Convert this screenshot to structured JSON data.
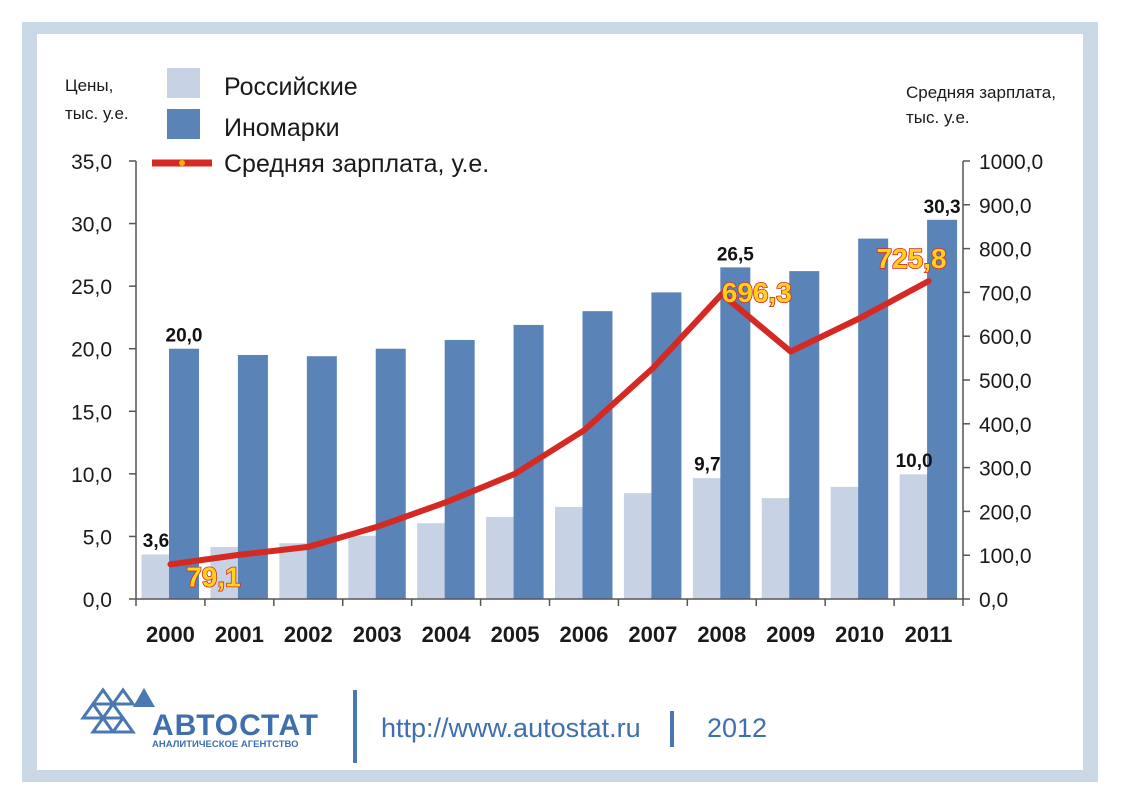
{
  "chart_data": {
    "type": "bar",
    "categories": [
      "2000",
      "2001",
      "2002",
      "2003",
      "2004",
      "2005",
      "2006",
      "2007",
      "2008",
      "2009",
      "2010",
      "2011"
    ],
    "series": [
      {
        "name": "Российские",
        "kind": "bar",
        "color": "#c7d3e5",
        "axis": "left",
        "values": [
          3.6,
          4.2,
          4.5,
          5.1,
          6.1,
          6.6,
          7.4,
          8.5,
          9.7,
          8.1,
          9.0,
          10.0
        ]
      },
      {
        "name": "Иномарки",
        "kind": "bar",
        "color": "#5a83b8",
        "axis": "left",
        "values": [
          20.0,
          19.5,
          19.4,
          20.0,
          20.7,
          21.9,
          23.0,
          24.5,
          26.5,
          26.2,
          28.8,
          30.3
        ]
      },
      {
        "name": "Средняя зарплата, у.е.",
        "kind": "line",
        "color": "#d42a23",
        "axis": "right",
        "values": [
          79.1,
          101,
          119,
          165,
          221,
          286,
          385,
          527,
          696.3,
          565,
          641,
          725.8
        ]
      }
    ],
    "left_axis": {
      "label_line1": "Цены,",
      "label_line2": "тыс. у.е.",
      "min": 0,
      "max": 35,
      "step": 5,
      "ticks": [
        "0,0",
        "5,0",
        "10,0",
        "15,0",
        "20,0",
        "25,0",
        "30,0",
        "35,0"
      ]
    },
    "right_axis": {
      "label_line1": "Средняя зарплата,",
      "label_line2": "тыс. у.е.",
      "min": 0,
      "max": 1000,
      "step": 100,
      "ticks": [
        "0,0",
        "100,0",
        "200,0",
        "300,0",
        "400,0",
        "500,0",
        "600,0",
        "700,0",
        "800,0",
        "900,0",
        "1000,0"
      ]
    },
    "annotations": {
      "bars": [
        {
          "series": 0,
          "index": 0,
          "text": "3,6"
        },
        {
          "series": 1,
          "index": 0,
          "text": "20,0"
        },
        {
          "series": 0,
          "index": 8,
          "text": "9,7"
        },
        {
          "series": 1,
          "index": 8,
          "text": "26,5"
        },
        {
          "series": 0,
          "index": 11,
          "text": "10,0"
        },
        {
          "series": 1,
          "index": 11,
          "text": "30,3"
        }
      ],
      "line": [
        {
          "index": 0,
          "text": "79,1"
        },
        {
          "index": 8,
          "text": "696,3"
        },
        {
          "index": 11,
          "text": "725,8"
        }
      ]
    },
    "grid": false,
    "legend_position": "top-left"
  },
  "footer": {
    "logo_name": "АВТОСТАТ",
    "logo_subtitle": "АНАЛИТИЧЕСКОЕ АГЕНТСТВО",
    "url": "http://www.autostat.ru",
    "year": "2012"
  }
}
